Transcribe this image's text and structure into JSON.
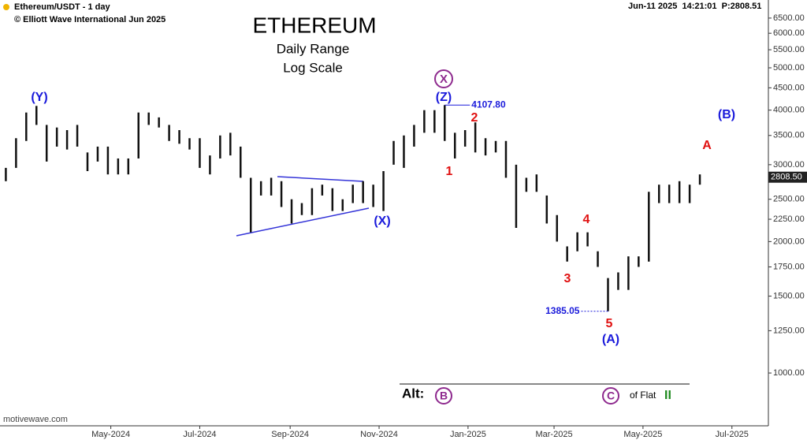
{
  "chart_data": {
    "type": "range",
    "header": {
      "symbol": "Ethereum/USDT - 1 day",
      "copyright": "© Elliott Wave International Jun 2025",
      "stamp": "Jun-11 2025  14:21:01  P:2808.51",
      "source": "motivewave.com"
    },
    "title": "ETHEREUM",
    "subtitle": "Daily Range",
    "subtitle2": "Log Scale",
    "log_scale": true,
    "color": "#111111",
    "x": [
      "2024-02-19",
      "2024-02-26",
      "2024-03-04",
      "2024-03-11",
      "2024-03-18",
      "2024-03-25",
      "2024-04-01",
      "2024-04-08",
      "2024-04-15",
      "2024-04-22",
      "2024-04-29",
      "2024-05-06",
      "2024-05-13",
      "2024-05-20",
      "2024-05-27",
      "2024-06-03",
      "2024-06-10",
      "2024-06-17",
      "2024-06-24",
      "2024-07-01",
      "2024-07-08",
      "2024-07-15",
      "2024-07-22",
      "2024-07-29",
      "2024-08-05",
      "2024-08-12",
      "2024-08-19",
      "2024-08-26",
      "2024-09-02",
      "2024-09-09",
      "2024-09-16",
      "2024-09-23",
      "2024-09-30",
      "2024-10-07",
      "2024-10-14",
      "2024-10-21",
      "2024-10-28",
      "2024-11-04",
      "2024-11-11",
      "2024-11-18",
      "2024-11-25",
      "2024-12-02",
      "2024-12-09",
      "2024-12-16",
      "2024-12-23",
      "2024-12-30",
      "2025-01-06",
      "2025-01-13",
      "2025-01-20",
      "2025-01-27",
      "2025-02-03",
      "2025-02-10",
      "2025-02-17",
      "2025-02-24",
      "2025-03-03",
      "2025-03-10",
      "2025-03-17",
      "2025-03-24",
      "2025-03-31",
      "2025-04-07",
      "2025-04-14",
      "2025-04-21",
      "2025-04-28",
      "2025-05-05",
      "2025-05-12",
      "2025-05-19",
      "2025-05-26",
      "2025-06-02",
      "2025-06-09"
    ],
    "high": [
      2950,
      3450,
      3950,
      4090,
      3700,
      3650,
      3600,
      3700,
      3200,
      3300,
      3300,
      3100,
      3100,
      3950,
      3950,
      3850,
      3700,
      3600,
      3450,
      3450,
      3150,
      3500,
      3550,
      3300,
      2800,
      2750,
      2800,
      2750,
      2500,
      2450,
      2650,
      2700,
      2650,
      2500,
      2700,
      2750,
      2700,
      2900,
      3400,
      3500,
      3700,
      4000,
      4000,
      4107.8,
      3550,
      3600,
      3750,
      3450,
      3400,
      3400,
      3000,
      2800,
      2850,
      2550,
      2300,
      1950,
      2100,
      2100,
      1900,
      1650,
      1700,
      1850,
      1850,
      2600,
      2700,
      2700,
      2750,
      2700,
      2850
    ],
    "low": [
      2750,
      2950,
      3400,
      3700,
      3050,
      3300,
      3250,
      3300,
      2900,
      3050,
      2850,
      2850,
      2850,
      3100,
      3700,
      3650,
      3400,
      3350,
      3250,
      2950,
      2850,
      3100,
      3150,
      2800,
      2100,
      2550,
      2550,
      2400,
      2200,
      2300,
      2300,
      2550,
      2350,
      2350,
      2450,
      2450,
      2400,
      2350,
      3000,
      2950,
      3300,
      3550,
      3550,
      3400,
      3100,
      3300,
      3200,
      3150,
      3200,
      2800,
      2150,
      2600,
      2600,
      2200,
      2000,
      1800,
      1900,
      1950,
      1750,
      1385.05,
      1550,
      1550,
      1750,
      1800,
      2450,
      2450,
      2450,
      2450,
      2700
    ],
    "price_labels": [
      {
        "value": 4107.8,
        "label": "4107.80"
      },
      {
        "value": 1385.05,
        "label": "1385.05"
      }
    ],
    "last_price": {
      "value": 2808.5,
      "label": "2808.50"
    },
    "xlim": [
      "2024-02-15",
      "2025-07-26"
    ],
    "xticks": [
      {
        "value": "2024-05-01",
        "label": "May-2024"
      },
      {
        "value": "2024-07-01",
        "label": "Jul-2024"
      },
      {
        "value": "2024-09-01",
        "label": "Sep-2024"
      },
      {
        "value": "2024-11-01",
        "label": "Nov-2024"
      },
      {
        "value": "2025-01-01",
        "label": "Jan-2025"
      },
      {
        "value": "2025-03-01",
        "label": "Mar-2025"
      },
      {
        "value": "2025-05-01",
        "label": "May-2025"
      },
      {
        "value": "2025-07-01",
        "label": "Jul-2025"
      }
    ],
    "ylim": [
      757,
      7150
    ],
    "yticks": [
      {
        "value": 1000,
        "label": "1000.00"
      },
      {
        "value": 1250,
        "label": "1250.00"
      },
      {
        "value": 1500,
        "label": "1500.00"
      },
      {
        "value": 1750,
        "label": "1750.00"
      },
      {
        "value": 2000,
        "label": "2000.00"
      },
      {
        "value": 2250,
        "label": "2250.00"
      },
      {
        "value": 2500,
        "label": "2500.00"
      },
      {
        "value": 3000,
        "label": "3000.00"
      },
      {
        "value": 3500,
        "label": "3500.00"
      },
      {
        "value": 4000,
        "label": "4000.00"
      },
      {
        "value": 4500,
        "label": "4500.00"
      },
      {
        "value": 5000,
        "label": "5000.00"
      },
      {
        "value": 5500,
        "label": "5500.00"
      },
      {
        "value": 6000,
        "label": "6000.00"
      },
      {
        "value": 6500,
        "label": "6500.00"
      }
    ],
    "annotations": [
      {
        "text": "(Y)",
        "color": "#1a1adb"
      },
      {
        "text": "(Z)",
        "color": "#1a1adb"
      },
      {
        "text": "X",
        "color": "#8e2a8e",
        "circled": true
      },
      {
        "text": "(X)",
        "color": "#1a1adb"
      },
      {
        "text": "1",
        "color": "#e01010"
      },
      {
        "text": "2",
        "color": "#e01010"
      },
      {
        "text": "3",
        "color": "#e01010"
      },
      {
        "text": "4",
        "color": "#e01010"
      },
      {
        "text": "5",
        "color": "#e01010"
      },
      {
        "text": "(A)",
        "color": "#1a1adb"
      },
      {
        "text": "A",
        "color": "#e01010"
      },
      {
        "text": "(B)",
        "color": "#1a1adb"
      }
    ],
    "alt": {
      "label": "Alt:",
      "wave1": "B",
      "wave2": "C",
      "note": "of Flat",
      "degree": "II",
      "circle_color": "#8e2a8e",
      "degree_color": "#1f8a1f"
    }
  }
}
